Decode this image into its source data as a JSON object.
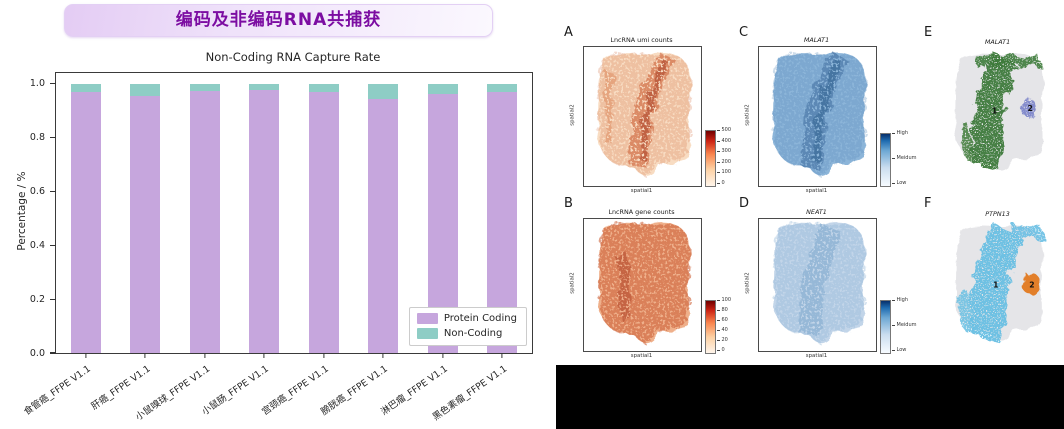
{
  "banner": {
    "title": "编码及非编码RNA共捕获"
  },
  "chart_data": {
    "type": "bar",
    "subtype": "stacked",
    "title": "Non-Coding RNA Capture Rate",
    "xlabel": "",
    "ylabel": "Percentage / %",
    "categories": [
      "食管癌_FFPE V1.1",
      "肝癌_FFPE V1.1",
      "小鼠嗅球_FFPE V1.1",
      "小鼠肠_FFPE V1.1",
      "宫颈癌_FFPE V1.1",
      "膀胱癌_FFPE V1.1",
      "淋巴瘤_FFPE V1.1",
      "黑色素瘤_FFPE V1.1"
    ],
    "series": [
      {
        "name": "Protein Coding",
        "color": "#c6a6dd",
        "values": [
          0.97,
          0.955,
          0.975,
          0.978,
          0.97,
          0.945,
          0.962,
          0.968
        ]
      },
      {
        "name": "Non-Coding",
        "color": "#8ecdc5",
        "values": [
          0.03,
          0.045,
          0.025,
          0.022,
          0.03,
          0.055,
          0.038,
          0.032
        ]
      }
    ],
    "yticks": [
      "0.0",
      "0.2",
      "0.4",
      "0.6",
      "0.8",
      "1.0"
    ],
    "ylim": [
      0,
      1.04
    ],
    "grid": false,
    "legend_position": "lower right"
  },
  "panels": [
    {
      "letter": "A",
      "title": "LncRNA umi counts",
      "xlabel": "spatial1",
      "ylabel": "spatial2",
      "colorbar": {
        "ticks": [
          "500",
          "400",
          "300",
          "200",
          "100",
          "0"
        ]
      }
    },
    {
      "letter": "B",
      "title": "LncRNA gene counts",
      "xlabel": "spatial1",
      "ylabel": "spatial2",
      "colorbar": {
        "ticks": [
          "100",
          "80",
          "60",
          "40",
          "20",
          "0"
        ]
      }
    },
    {
      "letter": "C",
      "title": "MALAT1",
      "xlabel": "spatial1",
      "ylabel": "spatial2",
      "colorbar": {
        "labels": [
          "High",
          "Meidum",
          "Low"
        ]
      }
    },
    {
      "letter": "D",
      "title": "NEAT1",
      "xlabel": "spatial1",
      "ylabel": "spatial2",
      "colorbar": {
        "labels": [
          "High",
          "Meidum",
          "Low"
        ]
      }
    },
    {
      "letter": "E",
      "title": "MALAT1",
      "clusters": {
        "c1": "1",
        "c2": "2"
      }
    },
    {
      "letter": "F",
      "title": "PTPN13",
      "clusters": {
        "c1": "1",
        "c2": "2"
      }
    }
  ]
}
